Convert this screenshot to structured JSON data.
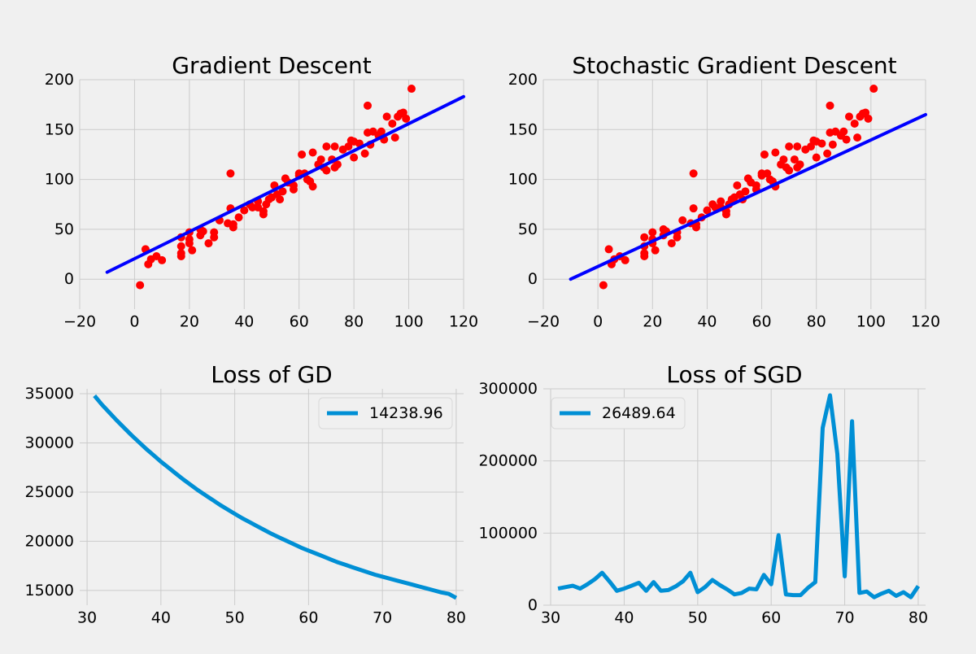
{
  "colors": {
    "background": "#f0f0f0",
    "grid": "#cbcbcb",
    "scatter": "#ff0000",
    "fit_line": "#0000ff",
    "loss_line": "#008fd5"
  },
  "chart_data": [
    {
      "type": "scatter",
      "title": "Gradient Descent",
      "xlabel": "",
      "ylabel": "",
      "xlim": [
        -20,
        120
      ],
      "ylim": [
        -30,
        200
      ],
      "xticks": [
        -20,
        0,
        20,
        40,
        60,
        80,
        100,
        120
      ],
      "yticks": [
        0,
        50,
        100,
        150,
        200
      ],
      "xtick_labels": [
        "−20",
        "0",
        "20",
        "40",
        "60",
        "80",
        "100",
        "120"
      ],
      "ytick_labels": [
        "0",
        "50",
        "100",
        "150",
        "200"
      ],
      "grid": true,
      "points": [
        [
          2,
          -6
        ],
        [
          4,
          30
        ],
        [
          5,
          15
        ],
        [
          6,
          20
        ],
        [
          8,
          23
        ],
        [
          10,
          19
        ],
        [
          17,
          42
        ],
        [
          17,
          33
        ],
        [
          17,
          26
        ],
        [
          17,
          23
        ],
        [
          20,
          47
        ],
        [
          20,
          40
        ],
        [
          20,
          36
        ],
        [
          21,
          29
        ],
        [
          24,
          44
        ],
        [
          24,
          50
        ],
        [
          25,
          48
        ],
        [
          27,
          36
        ],
        [
          29,
          42
        ],
        [
          29,
          47
        ],
        [
          31,
          59
        ],
        [
          34,
          56
        ],
        [
          35,
          71
        ],
        [
          35,
          106
        ],
        [
          36,
          52
        ],
        [
          36,
          55
        ],
        [
          38,
          62
        ],
        [
          40,
          69
        ],
        [
          42,
          75
        ],
        [
          43,
          72
        ],
        [
          45,
          72
        ],
        [
          45,
          78
        ],
        [
          47,
          68
        ],
        [
          47,
          65
        ],
        [
          48,
          75
        ],
        [
          49,
          80
        ],
        [
          50,
          82
        ],
        [
          51,
          94
        ],
        [
          52,
          85
        ],
        [
          53,
          80
        ],
        [
          54,
          88
        ],
        [
          55,
          101
        ],
        [
          56,
          97
        ],
        [
          58,
          90
        ],
        [
          58,
          94
        ],
        [
          60,
          106
        ],
        [
          60,
          104
        ],
        [
          61,
          125
        ],
        [
          62,
          106
        ],
        [
          63,
          100
        ],
        [
          64,
          98
        ],
        [
          65,
          93
        ],
        [
          65,
          127
        ],
        [
          67,
          115
        ],
        [
          68,
          120
        ],
        [
          69,
          112
        ],
        [
          70,
          109
        ],
        [
          70,
          133
        ],
        [
          72,
          120
        ],
        [
          73,
          112
        ],
        [
          73,
          133
        ],
        [
          74,
          115
        ],
        [
          76,
          130
        ],
        [
          78,
          133
        ],
        [
          79,
          139
        ],
        [
          80,
          138
        ],
        [
          80,
          122
        ],
        [
          82,
          136
        ],
        [
          84,
          126
        ],
        [
          85,
          147
        ],
        [
          85,
          174
        ],
        [
          86,
          135
        ],
        [
          87,
          148
        ],
        [
          89,
          144
        ],
        [
          90,
          148
        ],
        [
          91,
          140
        ],
        [
          92,
          163
        ],
        [
          94,
          156
        ],
        [
          95,
          142
        ],
        [
          96,
          163
        ],
        [
          97,
          166
        ],
        [
          98,
          167
        ],
        [
          99,
          161
        ],
        [
          101,
          191
        ]
      ],
      "fit_line": {
        "x": [
          -10,
          120
        ],
        "y": [
          7,
          183
        ]
      }
    },
    {
      "type": "scatter",
      "title": "Stochastic Gradient Descent",
      "xlabel": "",
      "ylabel": "",
      "xlim": [
        -20,
        120
      ],
      "ylim": [
        -30,
        200
      ],
      "xticks": [
        -20,
        0,
        20,
        40,
        60,
        80,
        100,
        120
      ],
      "yticks": [
        0,
        50,
        100,
        150,
        200
      ],
      "xtick_labels": [
        "−20",
        "0",
        "20",
        "40",
        "60",
        "80",
        "100",
        "120"
      ],
      "ytick_labels": [
        "0",
        "50",
        "100",
        "150",
        "200"
      ],
      "grid": true,
      "points": [
        [
          2,
          -6
        ],
        [
          4,
          30
        ],
        [
          5,
          15
        ],
        [
          6,
          20
        ],
        [
          8,
          23
        ],
        [
          10,
          19
        ],
        [
          17,
          42
        ],
        [
          17,
          33
        ],
        [
          17,
          26
        ],
        [
          17,
          23
        ],
        [
          20,
          47
        ],
        [
          20,
          40
        ],
        [
          20,
          36
        ],
        [
          21,
          29
        ],
        [
          24,
          44
        ],
        [
          24,
          50
        ],
        [
          25,
          48
        ],
        [
          27,
          36
        ],
        [
          29,
          42
        ],
        [
          29,
          47
        ],
        [
          31,
          59
        ],
        [
          34,
          56
        ],
        [
          35,
          71
        ],
        [
          35,
          106
        ],
        [
          36,
          52
        ],
        [
          36,
          55
        ],
        [
          38,
          62
        ],
        [
          40,
          69
        ],
        [
          42,
          75
        ],
        [
          43,
          72
        ],
        [
          45,
          72
        ],
        [
          45,
          78
        ],
        [
          47,
          68
        ],
        [
          47,
          65
        ],
        [
          48,
          75
        ],
        [
          49,
          80
        ],
        [
          50,
          82
        ],
        [
          51,
          94
        ],
        [
          52,
          85
        ],
        [
          53,
          80
        ],
        [
          54,
          88
        ],
        [
          55,
          101
        ],
        [
          56,
          97
        ],
        [
          58,
          90
        ],
        [
          58,
          94
        ],
        [
          60,
          106
        ],
        [
          60,
          104
        ],
        [
          61,
          125
        ],
        [
          62,
          106
        ],
        [
          63,
          100
        ],
        [
          64,
          98
        ],
        [
          65,
          93
        ],
        [
          65,
          127
        ],
        [
          67,
          115
        ],
        [
          68,
          120
        ],
        [
          69,
          112
        ],
        [
          70,
          109
        ],
        [
          70,
          133
        ],
        [
          72,
          120
        ],
        [
          73,
          112
        ],
        [
          73,
          133
        ],
        [
          74,
          115
        ],
        [
          76,
          130
        ],
        [
          78,
          133
        ],
        [
          79,
          139
        ],
        [
          80,
          138
        ],
        [
          80,
          122
        ],
        [
          82,
          136
        ],
        [
          84,
          126
        ],
        [
          85,
          147
        ],
        [
          85,
          174
        ],
        [
          86,
          135
        ],
        [
          87,
          148
        ],
        [
          89,
          144
        ],
        [
          90,
          148
        ],
        [
          91,
          140
        ],
        [
          92,
          163
        ],
        [
          94,
          156
        ],
        [
          95,
          142
        ],
        [
          96,
          163
        ],
        [
          97,
          166
        ],
        [
          98,
          167
        ],
        [
          99,
          161
        ],
        [
          101,
          191
        ]
      ],
      "fit_line": {
        "x": [
          -10,
          120
        ],
        "y": [
          0,
          165
        ]
      }
    },
    {
      "type": "line",
      "title": "Loss of GD",
      "xlabel": "",
      "ylabel": "",
      "xlim": [
        29,
        81
      ],
      "ylim": [
        13500,
        35500
      ],
      "xticks": [
        30,
        40,
        50,
        60,
        70,
        80
      ],
      "yticks": [
        15000,
        20000,
        25000,
        30000,
        35000
      ],
      "xtick_labels": [
        "30",
        "40",
        "50",
        "60",
        "70",
        "80"
      ],
      "ytick_labels": [
        "15000",
        "20000",
        "25000",
        "30000",
        "35000"
      ],
      "grid": true,
      "legend": "top-right",
      "series": [
        {
          "name": "14238.96",
          "x": [
            31,
            32,
            33,
            34,
            35,
            36,
            37,
            38,
            39,
            40,
            41,
            42,
            43,
            44,
            45,
            46,
            47,
            48,
            49,
            50,
            51,
            52,
            53,
            54,
            55,
            56,
            57,
            58,
            59,
            60,
            61,
            62,
            63,
            64,
            65,
            66,
            67,
            68,
            69,
            70,
            71,
            72,
            73,
            74,
            75,
            76,
            77,
            78,
            79,
            80
          ],
          "values": [
            34800,
            33900,
            33100,
            32300,
            31550,
            30800,
            30100,
            29400,
            28750,
            28100,
            27500,
            26900,
            26300,
            25750,
            25200,
            24700,
            24200,
            23700,
            23250,
            22800,
            22350,
            21950,
            21550,
            21150,
            20750,
            20400,
            20050,
            19700,
            19350,
            19050,
            18750,
            18450,
            18150,
            17850,
            17600,
            17350,
            17100,
            16850,
            16600,
            16400,
            16200,
            16000,
            15800,
            15600,
            15400,
            15200,
            15000,
            14800,
            14650,
            14239
          ]
        }
      ]
    },
    {
      "type": "line",
      "title": "Loss of SGD",
      "xlabel": "",
      "ylabel": "",
      "xlim": [
        29,
        81
      ],
      "ylim": [
        0,
        300000
      ],
      "xticks": [
        30,
        40,
        50,
        60,
        70,
        80
      ],
      "yticks": [
        0,
        100000,
        200000,
        300000
      ],
      "xtick_labels": [
        "30",
        "40",
        "50",
        "60",
        "70",
        "80"
      ],
      "ytick_labels": [
        "0",
        "100000",
        "200000",
        "300000"
      ],
      "grid": true,
      "legend": "top-left",
      "series": [
        {
          "name": "26489.64",
          "x": [
            31,
            32,
            33,
            34,
            35,
            36,
            37,
            38,
            39,
            40,
            41,
            42,
            43,
            44,
            45,
            46,
            47,
            48,
            49,
            50,
            51,
            52,
            53,
            54,
            55,
            56,
            57,
            58,
            59,
            60,
            61,
            62,
            63,
            64,
            65,
            66,
            67,
            68,
            69,
            70,
            71,
            72,
            73,
            74,
            75,
            76,
            77,
            78,
            79,
            80
          ],
          "values": [
            23000,
            25000,
            27000,
            23000,
            29000,
            36000,
            45000,
            33000,
            20000,
            23000,
            27000,
            31000,
            20000,
            32000,
            20000,
            21000,
            26000,
            33000,
            45000,
            18000,
            25000,
            35000,
            28000,
            22000,
            15000,
            17000,
            23000,
            22000,
            42000,
            29000,
            97000,
            15000,
            14000,
            14000,
            24000,
            32000,
            246000,
            291000,
            210000,
            40000,
            255000,
            17000,
            19000,
            11000,
            16000,
            20000,
            13000,
            18000,
            11000,
            26490
          ]
        }
      ]
    }
  ]
}
